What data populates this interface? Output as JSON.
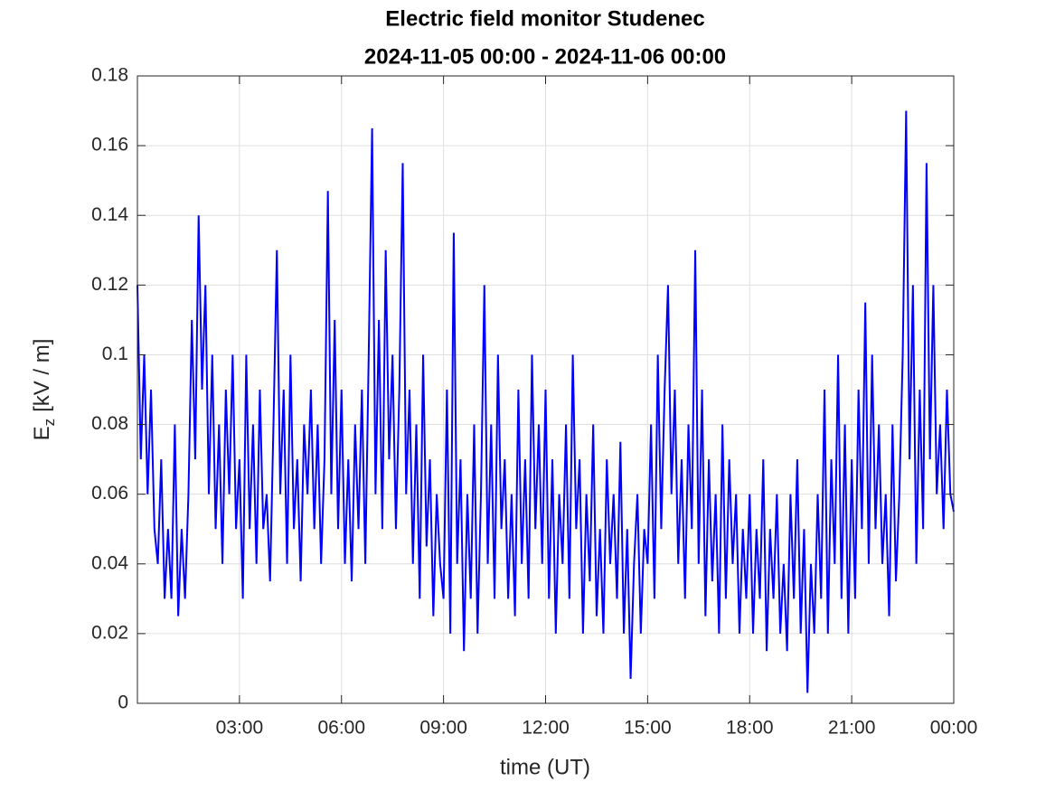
{
  "chart_data": {
    "type": "line",
    "title": "Electric field monitor Studenec",
    "subtitle": "2024-11-05 00:00 - 2024-11-06 00:00",
    "x_label": "time (UT)",
    "y_label": [
      "E",
      "z",
      "[kV / m]"
    ],
    "color": "#0000ff",
    "grid": true,
    "xlim": [
      0,
      24
    ],
    "xticks": [
      {
        "value": 3,
        "label": "03:00"
      },
      {
        "value": 6,
        "label": "06:00"
      },
      {
        "value": 9,
        "label": "09:00"
      },
      {
        "value": 12,
        "label": "12:00"
      },
      {
        "value": 15,
        "label": "15:00"
      },
      {
        "value": 18,
        "label": "18:00"
      },
      {
        "value": 21,
        "label": "21:00"
      },
      {
        "value": 24,
        "label": "00:00"
      }
    ],
    "ylim": [
      0,
      0.18
    ],
    "yticks": [
      0,
      0.02,
      0.04,
      0.06,
      0.08,
      0.1,
      0.12,
      0.14,
      0.16,
      0.18
    ],
    "x": [
      0,
      0.1,
      0.2,
      0.3,
      0.4,
      0.5,
      0.6,
      0.7,
      0.8,
      0.9,
      1,
      1.1,
      1.2,
      1.3,
      1.4,
      1.5,
      1.6,
      1.7,
      1.8,
      1.9,
      2,
      2.1,
      2.2,
      2.3,
      2.4,
      2.5,
      2.6,
      2.7,
      2.8,
      2.9,
      3,
      3.1,
      3.2,
      3.3,
      3.4,
      3.5,
      3.6,
      3.7,
      3.8,
      3.9,
      4,
      4.1,
      4.2,
      4.3,
      4.4,
      4.5,
      4.6,
      4.7,
      4.8,
      4.9,
      5,
      5.1,
      5.2,
      5.3,
      5.4,
      5.5,
      5.6,
      5.7,
      5.8,
      5.9,
      6,
      6.1,
      6.2,
      6.3,
      6.4,
      6.5,
      6.6,
      6.7,
      6.8,
      6.9,
      7,
      7.1,
      7.2,
      7.3,
      7.4,
      7.5,
      7.6,
      7.7,
      7.8,
      7.9,
      8,
      8.1,
      8.2,
      8.3,
      8.4,
      8.5,
      8.6,
      8.7,
      8.8,
      8.9,
      9,
      9.1,
      9.2,
      9.3,
      9.4,
      9.5,
      9.6,
      9.7,
      9.8,
      9.9,
      10,
      10.1,
      10.2,
      10.3,
      10.4,
      10.5,
      10.6,
      10.7,
      10.8,
      10.9,
      11,
      11.1,
      11.2,
      11.3,
      11.4,
      11.5,
      11.6,
      11.7,
      11.8,
      11.9,
      12,
      12.1,
      12.2,
      12.3,
      12.4,
      12.5,
      12.6,
      12.7,
      12.8,
      12.9,
      13,
      13.1,
      13.2,
      13.3,
      13.4,
      13.5,
      13.6,
      13.7,
      13.8,
      13.9,
      14,
      14.1,
      14.2,
      14.3,
      14.4,
      14.5,
      14.6,
      14.7,
      14.8,
      14.9,
      15,
      15.1,
      15.2,
      15.3,
      15.4,
      15.5,
      15.6,
      15.7,
      15.8,
      15.9,
      16,
      16.1,
      16.2,
      16.3,
      16.4,
      16.5,
      16.6,
      16.7,
      16.8,
      16.9,
      17,
      17.1,
      17.2,
      17.3,
      17.4,
      17.5,
      17.6,
      17.7,
      17.8,
      17.9,
      18,
      18.1,
      18.2,
      18.3,
      18.4,
      18.5,
      18.6,
      18.7,
      18.8,
      18.9,
      19,
      19.1,
      19.2,
      19.3,
      19.4,
      19.5,
      19.6,
      19.7,
      19.8,
      19.9,
      20,
      20.1,
      20.2,
      20.3,
      20.4,
      20.5,
      20.6,
      20.7,
      20.8,
      20.9,
      21,
      21.1,
      21.2,
      21.3,
      21.4,
      21.5,
      21.6,
      21.7,
      21.8,
      21.9,
      22,
      22.1,
      22.2,
      22.3,
      22.4,
      22.5,
      22.6,
      22.7,
      22.8,
      22.9,
      23,
      23.1,
      23.2,
      23.3,
      23.4,
      23.5,
      23.6,
      23.7,
      23.8,
      23.9,
      24
    ],
    "values": [
      0.12,
      0.07,
      0.1,
      0.06,
      0.09,
      0.05,
      0.04,
      0.07,
      0.03,
      0.05,
      0.03,
      0.08,
      0.025,
      0.05,
      0.03,
      0.06,
      0.11,
      0.07,
      0.14,
      0.09,
      0.12,
      0.06,
      0.1,
      0.05,
      0.08,
      0.04,
      0.09,
      0.06,
      0.1,
      0.05,
      0.07,
      0.03,
      0.1,
      0.05,
      0.08,
      0.04,
      0.09,
      0.05,
      0.06,
      0.035,
      0.08,
      0.13,
      0.06,
      0.09,
      0.04,
      0.1,
      0.05,
      0.07,
      0.035,
      0.08,
      0.06,
      0.09,
      0.05,
      0.08,
      0.04,
      0.07,
      0.147,
      0.06,
      0.11,
      0.05,
      0.09,
      0.04,
      0.07,
      0.035,
      0.08,
      0.05,
      0.09,
      0.04,
      0.1,
      0.165,
      0.06,
      0.11,
      0.05,
      0.13,
      0.07,
      0.1,
      0.05,
      0.09,
      0.155,
      0.06,
      0.09,
      0.04,
      0.08,
      0.03,
      0.1,
      0.045,
      0.07,
      0.025,
      0.06,
      0.04,
      0.03,
      0.09,
      0.02,
      0.135,
      0.04,
      0.07,
      0.015,
      0.06,
      0.03,
      0.08,
      0.02,
      0.06,
      0.12,
      0.04,
      0.08,
      0.03,
      0.1,
      0.05,
      0.07,
      0.03,
      0.06,
      0.025,
      0.09,
      0.04,
      0.07,
      0.03,
      0.1,
      0.05,
      0.08,
      0.04,
      0.09,
      0.03,
      0.07,
      0.02,
      0.06,
      0.04,
      0.08,
      0.03,
      0.1,
      0.05,
      0.07,
      0.02,
      0.06,
      0.035,
      0.08,
      0.025,
      0.05,
      0.02,
      0.07,
      0.04,
      0.06,
      0.03,
      0.075,
      0.02,
      0.05,
      0.007,
      0.04,
      0.06,
      0.02,
      0.05,
      0.04,
      0.08,
      0.03,
      0.1,
      0.05,
      0.09,
      0.12,
      0.06,
      0.09,
      0.04,
      0.07,
      0.03,
      0.08,
      0.05,
      0.13,
      0.04,
      0.09,
      0.025,
      0.07,
      0.035,
      0.06,
      0.02,
      0.08,
      0.03,
      0.07,
      0.04,
      0.06,
      0.02,
      0.05,
      0.03,
      0.06,
      0.02,
      0.05,
      0.03,
      0.07,
      0.015,
      0.05,
      0.03,
      0.06,
      0.02,
      0.04,
      0.015,
      0.06,
      0.03,
      0.07,
      0.02,
      0.05,
      0.003,
      0.04,
      0.02,
      0.06,
      0.03,
      0.09,
      0.02,
      0.07,
      0.04,
      0.1,
      0.03,
      0.08,
      0.02,
      0.07,
      0.03,
      0.09,
      0.05,
      0.115,
      0.04,
      0.1,
      0.05,
      0.08,
      0.04,
      0.06,
      0.025,
      0.08,
      0.035,
      0.06,
      0.1,
      0.17,
      0.07,
      0.12,
      0.04,
      0.09,
      0.05,
      0.155,
      0.07,
      0.12,
      0.06,
      0.08,
      0.05,
      0.09,
      0.06,
      0.055
    ]
  }
}
